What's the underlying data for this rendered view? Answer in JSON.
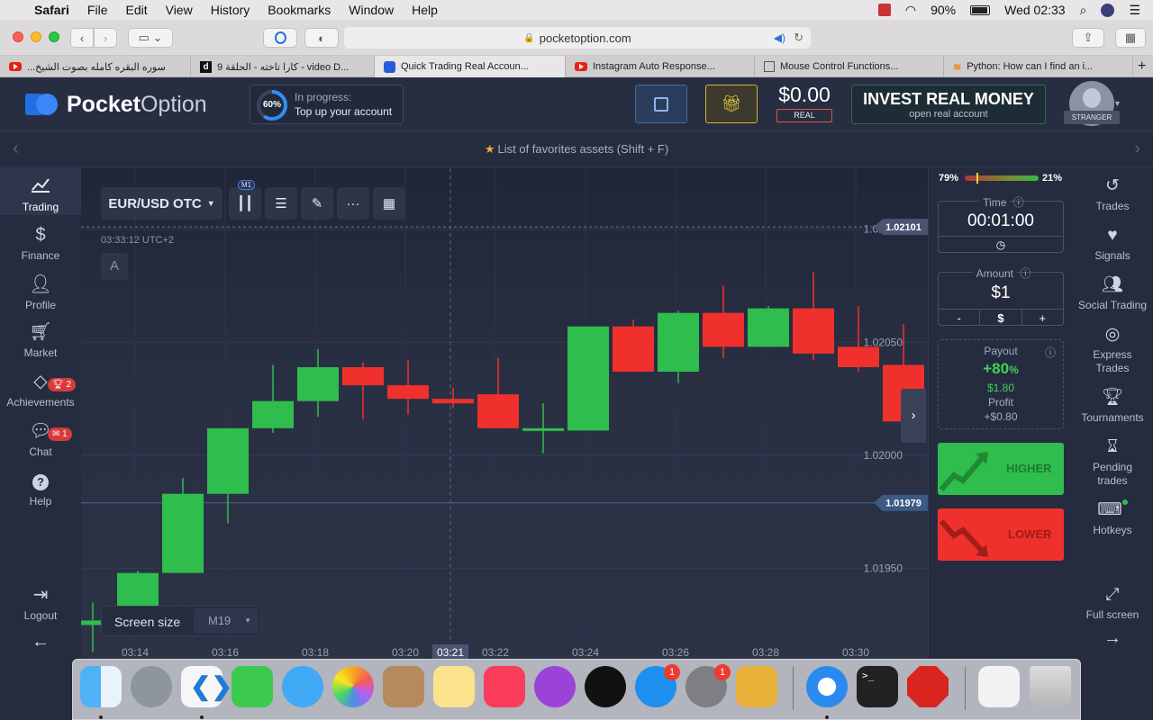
{
  "menubar": {
    "app": "Safari",
    "items": [
      "File",
      "Edit",
      "View",
      "History",
      "Bookmarks",
      "Window",
      "Help"
    ],
    "battery": "90%",
    "clock": "Wed 02:33"
  },
  "browser": {
    "url": "pocketoption.com",
    "tabs": [
      {
        "label": "سوره البقره كامله بصوت الشيخ...",
        "icon": "youtube-icon"
      },
      {
        "label": "كارا تاخته - الحلقة 9 - video D...",
        "icon": "dailymotion-icon"
      },
      {
        "label": "Quick Trading Real Accoun...",
        "icon": "pocketoption-icon"
      },
      {
        "label": "Instagram Auto Response...",
        "icon": "youtube-icon"
      },
      {
        "label": "Mouse Control Functions...",
        "icon": "doc-icon"
      },
      {
        "label": "Python: How can I find an i...",
        "icon": "stackoverflow-icon"
      }
    ]
  },
  "header": {
    "logo_bold": "Pocket",
    "logo_light": "Option",
    "progress_pct": "60%",
    "progress_value": 0.6,
    "progress_title": "In progress:",
    "progress_sub": "Top up your account",
    "balance": "$0.00",
    "balance_type": "REAL",
    "invest_title": "INVEST REAL MONEY",
    "invest_sub": "open real account",
    "user_label": "STRANGER"
  },
  "favorites_bar": "List of favorites assets (Shift + F)",
  "left_nav": [
    {
      "label": "Trading",
      "icon": "chart-line-icon"
    },
    {
      "label": "Finance",
      "icon": "dollar-icon"
    },
    {
      "label": "Profile",
      "icon": "user-icon"
    },
    {
      "label": "Market",
      "icon": "cart-icon"
    },
    {
      "label": "Achievements",
      "icon": "diamond-icon",
      "badge": "2"
    },
    {
      "label": "Chat",
      "icon": "chat-icon",
      "badge": "1"
    },
    {
      "label": "Help",
      "icon": "help-icon"
    }
  ],
  "logout_label": "Logout",
  "chart_controls": {
    "asset": "EUR/USD OTC",
    "timeframe_badge": "M1",
    "server_time": "03:33:12 UTC+2",
    "drawing_letter": "A",
    "screen_size_label": "Screen size",
    "screen_size_value": "M19"
  },
  "chart_data": {
    "type": "candlestick",
    "x_labels": [
      "03:14",
      "03:16",
      "03:18",
      "03:20",
      "03:21",
      "03:22",
      "03:24",
      "03:26",
      "03:28",
      "03:30"
    ],
    "y_labels": [
      "1.02100",
      "1.02050",
      "1.02000",
      "1.01950"
    ],
    "ylim": [
      1.0192,
      1.02115
    ],
    "price_tag_top": "1.02101",
    "price_tag_current": "1.01979",
    "candles": [
      {
        "o": 1.01925,
        "c": 1.01927,
        "h": 1.01935,
        "l": 1.01913
      },
      {
        "o": 1.01927,
        "c": 1.01948,
        "h": 1.01949,
        "l": 1.01927
      },
      {
        "o": 1.01948,
        "c": 1.01983,
        "h": 1.0199,
        "l": 1.01948
      },
      {
        "o": 1.01983,
        "c": 1.02012,
        "h": 1.02012,
        "l": 1.0197
      },
      {
        "o": 1.02012,
        "c": 1.02024,
        "h": 1.0204,
        "l": 1.0201
      },
      {
        "o": 1.02024,
        "c": 1.02039,
        "h": 1.02047,
        "l": 1.02017
      },
      {
        "o": 1.02039,
        "c": 1.02031,
        "h": 1.02041,
        "l": 1.02016
      },
      {
        "o": 1.02031,
        "c": 1.02025,
        "h": 1.02042,
        "l": 1.02018
      },
      {
        "o": 1.02025,
        "c": 1.02023,
        "h": 1.0203,
        "l": 1.02021
      },
      {
        "o": 1.02027,
        "c": 1.02012,
        "h": 1.02043,
        "l": 1.02012
      },
      {
        "o": 1.02011,
        "c": 1.02012,
        "h": 1.02023,
        "l": 1.02001
      },
      {
        "o": 1.02011,
        "c": 1.02057,
        "h": 1.02057,
        "l": 1.02011
      },
      {
        "o": 1.02057,
        "c": 1.02037,
        "h": 1.0206,
        "l": 1.02037
      },
      {
        "o": 1.02037,
        "c": 1.02063,
        "h": 1.02064,
        "l": 1.02032
      },
      {
        "o": 1.02063,
        "c": 1.02048,
        "h": 1.02075,
        "l": 1.02043
      },
      {
        "o": 1.02048,
        "c": 1.02065,
        "h": 1.02066,
        "l": 1.02048
      },
      {
        "o": 1.02065,
        "c": 1.02045,
        "h": 1.02081,
        "l": 1.02042
      },
      {
        "o": 1.02048,
        "c": 1.02039,
        "h": 1.02066,
        "l": 1.02037
      },
      {
        "o": 1.0204,
        "c": 1.02015,
        "h": 1.02058,
        "l": 1.02015
      }
    ]
  },
  "right_panel": {
    "sentiment_left": "79%",
    "sentiment_right": "21%",
    "sentiment_value": 0.79,
    "time_label": "Time",
    "time_value": "00:01:00",
    "amount_label": "Amount",
    "amount_value": "$1",
    "amount_minus": "-",
    "amount_currency": "$",
    "amount_plus": "+",
    "payout_label": "Payout",
    "payout_pct": "+80",
    "payout_pct_sign": "%",
    "payout_amount": "$1.80",
    "profit_label": "Profit",
    "profit_value": "+$0.80",
    "higher": "HIGHER",
    "lower": "LOWER"
  },
  "right_nav": [
    {
      "label": "Trades",
      "icon": "history-icon"
    },
    {
      "label": "Signals",
      "icon": "heartbeat-icon"
    },
    {
      "label": "Social Trading",
      "icon": "users-icon"
    },
    {
      "label": "Express Trades",
      "icon": "target-icon"
    },
    {
      "label": "Tournaments",
      "icon": "trophy-icon"
    },
    {
      "label": "Pending trades",
      "icon": "hourglass-icon"
    },
    {
      "label": "Hotkeys",
      "icon": "keyboard-icon"
    }
  ],
  "fullscreen_label": "Full screen",
  "dock": {
    "badges": {
      "appstore": "1",
      "sysprefs": "1"
    }
  },
  "colors": {
    "up": "#2fbd4d",
    "down": "#f0302c",
    "bg": "#262c3f",
    "accent": "#3f7cf6"
  }
}
